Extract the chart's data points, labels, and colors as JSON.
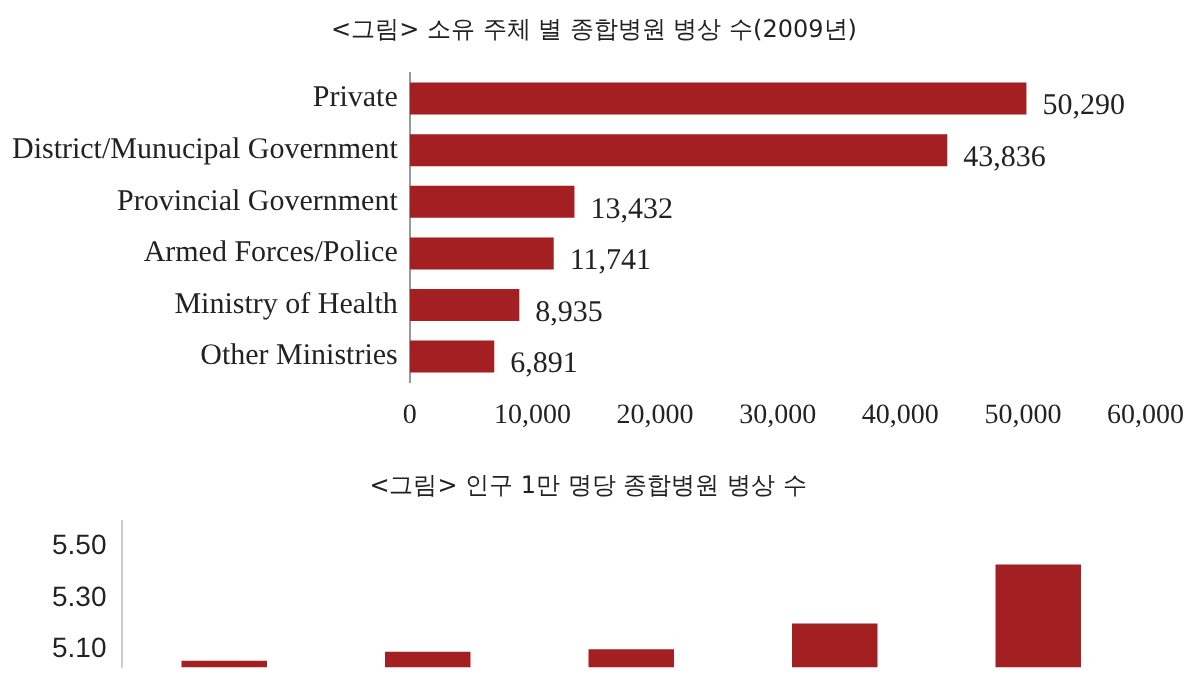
{
  "chart_data": [
    {
      "type": "bar",
      "orientation": "horizontal",
      "title": "<그림> 소유 주체 별 종합병원 병상 수(2009년)",
      "categories": [
        "Private",
        "District/Munucipal Government",
        "Provincial Government",
        "Armed Forces/Police",
        "Ministry of Health",
        "Other Ministries"
      ],
      "values": [
        50290,
        43836,
        13432,
        11741,
        8935,
        6891
      ],
      "color": "#a31f22",
      "xlim": [
        0,
        60000
      ],
      "xticks": [
        {
          "value": 0,
          "label": "0"
        },
        {
          "value": 10000,
          "label": "10,000"
        },
        {
          "value": 20000,
          "label": "20,000"
        },
        {
          "value": 30000,
          "label": "30,000"
        },
        {
          "value": 40000,
          "label": "40,000"
        },
        {
          "value": 50000,
          "label": "50,000"
        },
        {
          "value": 60000,
          "label": "60,000"
        }
      ],
      "grid": false,
      "legend": false,
      "data_labels": true,
      "value_labels": [
        "50,290",
        "43,836",
        "13,432",
        "11,741",
        "8,935",
        "6,891"
      ]
    },
    {
      "type": "bar",
      "title": "<그림> 인구 1만 명당 종합병원 병상 수",
      "categories": [
        null,
        null,
        null,
        null,
        null
      ],
      "values": [
        5.055,
        5.09,
        5.1,
        5.2,
        5.43
      ],
      "color": "#a31f22",
      "ylim": [
        5.03,
        5.6
      ],
      "yticks": [
        {
          "value": 5.1,
          "label": "5.10"
        },
        {
          "value": 5.3,
          "label": "5.30"
        },
        {
          "value": 5.5,
          "label": "5.50"
        }
      ],
      "grid": false,
      "legend": false,
      "tick_labels": "y"
    }
  ]
}
